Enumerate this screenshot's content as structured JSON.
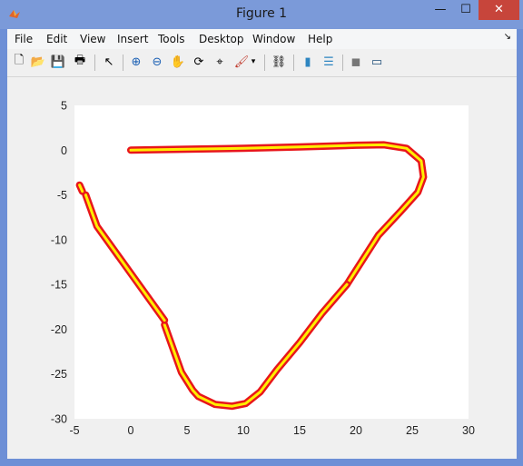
{
  "window": {
    "title": "Figure 1",
    "min_glyph": "—",
    "max_glyph": "☐",
    "close_glyph": "✕"
  },
  "menu": [
    "File",
    "Edit",
    "View",
    "Insert",
    "Tools",
    "Desktop",
    "Window",
    "Help"
  ],
  "toolbar": [
    "new-figure",
    "open-file",
    "save-figure",
    "print-figure",
    "edit-plot",
    "zoom-in",
    "zoom-out",
    "pan",
    "rotate-3d",
    "data-cursor",
    "brush",
    "brush-dropdown",
    "link-plot",
    "insert-colorbar",
    "insert-legend",
    "hide-plot-tools",
    "show-plot-tools"
  ],
  "toolbar_glyphs": [
    "🗋",
    "📂",
    "💾",
    "🖶",
    "↖",
    "⊕",
    "⊖",
    "✋",
    "⟳",
    "⌖",
    "🖌",
    "▾",
    "⛓",
    "▮",
    "☰",
    "◼",
    "▭"
  ],
  "chart_data": {
    "type": "line",
    "title": "",
    "xlabel": "",
    "ylabel": "",
    "xlim": [
      -5,
      30
    ],
    "ylim": [
      -30,
      5
    ],
    "xticks": [
      -5,
      0,
      5,
      10,
      15,
      20,
      25,
      30
    ],
    "yticks": [
      5,
      0,
      -5,
      -10,
      -15,
      -20,
      -25,
      -30
    ],
    "grid": false,
    "line_colors": {
      "outline": "#e8161b",
      "fill": "#ffee00"
    },
    "series": [
      {
        "x": [
          0,
          5,
          10,
          15,
          20,
          22.5,
          24.5,
          25.8,
          26,
          25.5,
          24,
          22,
          19.2
        ],
        "y": [
          0,
          0.1,
          0.2,
          0.35,
          0.55,
          0.6,
          0.2,
          -1.2,
          -3,
          -4.7,
          -6.8,
          -9.5,
          -15
        ]
      },
      {
        "x": [
          19.2,
          17,
          15,
          13,
          11.5,
          10.2,
          9,
          7.5,
          6,
          5.5,
          4.5,
          3
        ],
        "y": [
          -15,
          -18.2,
          -21.5,
          -24.5,
          -27,
          -28.3,
          -28.6,
          -28.4,
          -27.5,
          -26.8,
          -24.8,
          -19.5
        ]
      },
      {
        "x": [
          3,
          1,
          -1,
          -3,
          -4
        ],
        "y": [
          -19,
          -15.5,
          -12,
          -8.5,
          -5
        ]
      },
      {
        "x": [
          -4.3,
          -4.55
        ],
        "y": [
          -4.6,
          -3.9
        ]
      }
    ]
  }
}
